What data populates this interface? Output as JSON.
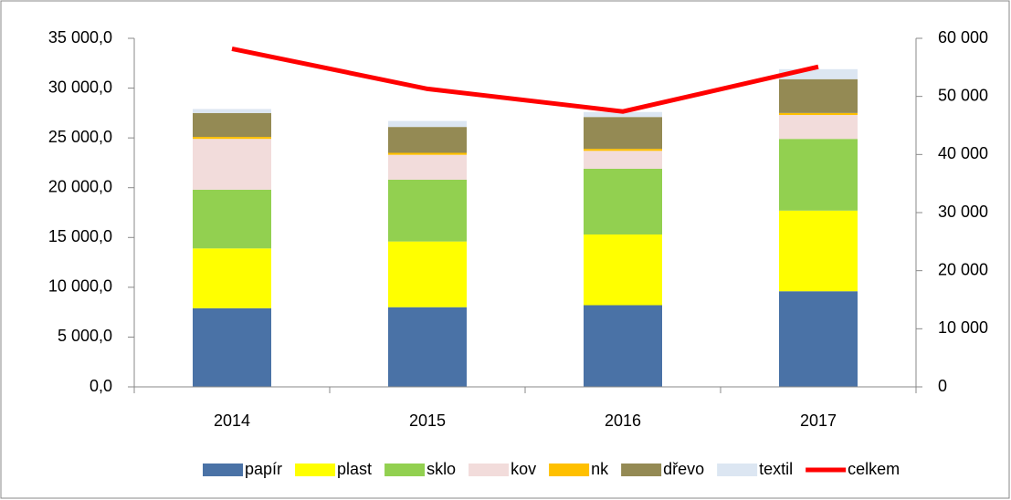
{
  "chart_data": {
    "type": "bar",
    "stacked": true,
    "categories": [
      "2014",
      "2015",
      "2016",
      "2017"
    ],
    "series": [
      {
        "name": "papír",
        "color": "#4a72a6",
        "values": [
          7900,
          8000,
          8200,
          9600
        ]
      },
      {
        "name": "plast",
        "color": "#ffff00",
        "values": [
          6000,
          6600,
          7100,
          8100
        ]
      },
      {
        "name": "sklo",
        "color": "#92d050",
        "values": [
          5900,
          6200,
          6600,
          7200
        ]
      },
      {
        "name": "kov",
        "color": "#f2dcdb",
        "values": [
          5100,
          2500,
          1800,
          2400
        ]
      },
      {
        "name": "nk",
        "color": "#ffc000",
        "values": [
          200,
          200,
          200,
          200
        ]
      },
      {
        "name": "dřevo",
        "color": "#948a54",
        "values": [
          2400,
          2600,
          3200,
          3400
        ]
      },
      {
        "name": "textil",
        "color": "#dce6f2",
        "values": [
          400,
          600,
          500,
          1000
        ]
      },
      {
        "name": "celkem",
        "color": "#ff0000",
        "type": "line",
        "axis": "y2",
        "values": [
          58200,
          51300,
          47400,
          55100
        ]
      }
    ],
    "ylim": [
      0,
      35000
    ],
    "yticks": [
      {
        "value": 0,
        "label": "0,0"
      },
      {
        "value": 5000,
        "label": "5 000,0"
      },
      {
        "value": 10000,
        "label": "10 000,0"
      },
      {
        "value": 15000,
        "label": "15 000,0"
      },
      {
        "value": 20000,
        "label": "20 000,0"
      },
      {
        "value": 25000,
        "label": "25 000,0"
      },
      {
        "value": 30000,
        "label": "30 000,0"
      },
      {
        "value": 35000,
        "label": "35 000,0"
      }
    ],
    "y2lim": [
      0,
      60000
    ],
    "y2ticks": [
      0,
      {
        "value": 10000,
        "label": "10 000"
      },
      {
        "value": 20000,
        "label": "20 000"
      },
      {
        "value": 30000,
        "label": "30 000"
      },
      {
        "value": 40000,
        "label": "40 000"
      },
      {
        "value": 50000,
        "label": "50 000"
      },
      {
        "value": 60000,
        "label": "60 000"
      }
    ],
    "legend": "bottom",
    "grid": false
  }
}
